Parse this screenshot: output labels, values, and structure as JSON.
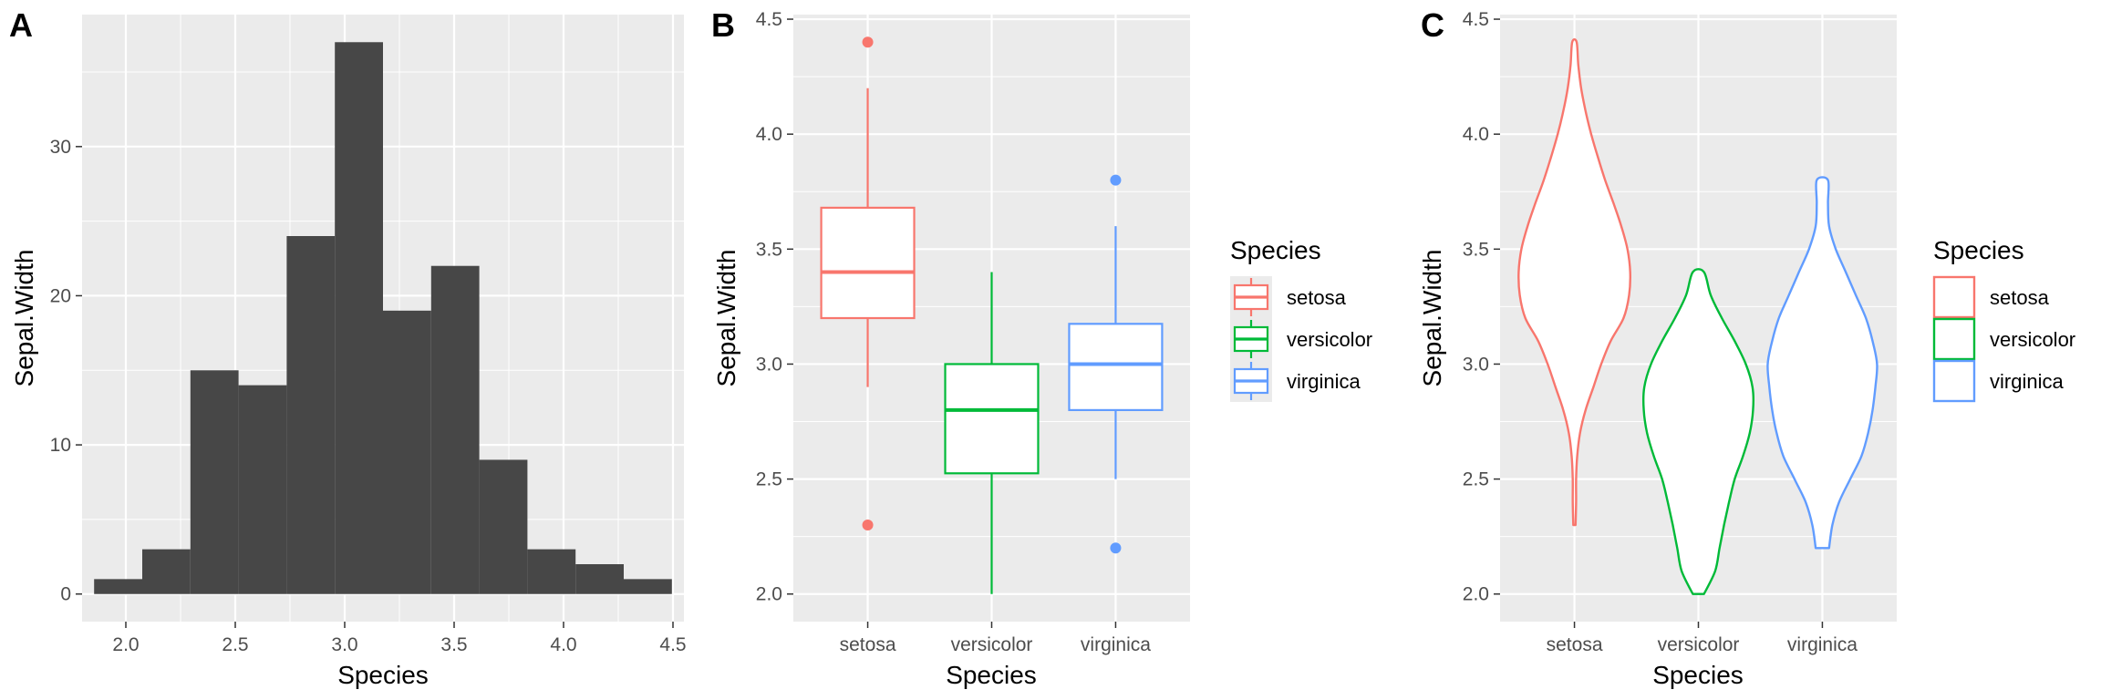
{
  "panels": [
    {
      "letter": "A",
      "chart_data": {
        "type": "bar",
        "subtype": "histogram",
        "title": "",
        "xlabel": "Species",
        "ylabel": "Sepal.Width",
        "xlim": [
          1.8,
          4.55
        ],
        "ylim": [
          -1.85,
          38.85
        ],
        "x_ticks": [
          "2.0",
          "2.5",
          "3.0",
          "3.5",
          "4.0",
          "4.5"
        ],
        "y_ticks": [
          "0",
          "10",
          "20",
          "30"
        ],
        "bin_edges": [
          1.855,
          2.075,
          2.295,
          2.515,
          2.735,
          2.955,
          3.175,
          3.395,
          3.615,
          3.835,
          4.055,
          4.275,
          4.495
        ],
        "values": [
          1,
          3,
          15,
          14,
          24,
          37,
          19,
          22,
          9,
          3,
          2,
          1
        ],
        "fill": "#474747",
        "grid": true
      }
    },
    {
      "letter": "B",
      "chart_data": {
        "type": "box",
        "title": "",
        "xlabel": "Species",
        "ylabel": "Sepal.Width",
        "categories": [
          "setosa",
          "versicolor",
          "virginica"
        ],
        "y_ticks": [
          "2.0",
          "2.5",
          "3.0",
          "3.5",
          "4.0",
          "4.5"
        ],
        "ylim": [
          1.88,
          4.52
        ],
        "series": [
          {
            "name": "setosa",
            "color": "#F8766D",
            "min": 2.9,
            "q1": 3.2,
            "median": 3.4,
            "q3": 3.68,
            "max": 4.2,
            "outliers": [
              2.3,
              4.4
            ]
          },
          {
            "name": "versicolor",
            "color": "#00BA38",
            "min": 2.0,
            "q1": 2.525,
            "median": 2.8,
            "q3": 3.0,
            "max": 3.4,
            "outliers": []
          },
          {
            "name": "virginica",
            "color": "#619CFF",
            "min": 2.5,
            "q1": 2.8,
            "median": 3.0,
            "q3": 3.175,
            "max": 3.6,
            "outliers": [
              2.2,
              3.8
            ]
          }
        ],
        "legend": {
          "title": "Species",
          "position": "right"
        },
        "grid": true
      }
    },
    {
      "letter": "C",
      "chart_data": {
        "type": "violin",
        "title": "",
        "xlabel": "Species",
        "ylabel": "Sepal.Width",
        "categories": [
          "setosa",
          "versicolor",
          "virginica"
        ],
        "y_ticks": [
          "2.0",
          "2.5",
          "3.0",
          "3.5",
          "4.0",
          "4.5"
        ],
        "ylim": [
          1.88,
          4.52
        ],
        "series": [
          {
            "name": "setosa",
            "color": "#F8766D",
            "y": [
              2.3,
              2.4,
              2.5,
              2.6,
              2.7,
              2.8,
              2.9,
              3.0,
              3.1,
              3.2,
              3.3,
              3.4,
              3.5,
              3.6,
              3.7,
              3.8,
              3.9,
              4.0,
              4.1,
              4.2,
              4.3,
              4.4
            ],
            "width": [
              0.02,
              0.03,
              0.03,
              0.05,
              0.1,
              0.2,
              0.34,
              0.48,
              0.65,
              0.88,
              0.98,
              1.0,
              0.95,
              0.84,
              0.7,
              0.55,
              0.42,
              0.3,
              0.2,
              0.12,
              0.07,
              0.04
            ]
          },
          {
            "name": "versicolor",
            "color": "#00BA38",
            "y": [
              2.0,
              2.1,
              2.2,
              2.3,
              2.4,
              2.5,
              2.6,
              2.7,
              2.8,
              2.9,
              3.0,
              3.1,
              3.2,
              3.3,
              3.4
            ],
            "width": [
              0.1,
              0.3,
              0.38,
              0.46,
              0.55,
              0.65,
              0.8,
              0.92,
              0.98,
              0.97,
              0.85,
              0.65,
              0.42,
              0.22,
              0.1
            ]
          },
          {
            "name": "virginica",
            "color": "#619CFF",
            "y": [
              2.2,
              2.3,
              2.4,
              2.5,
              2.6,
              2.7,
              2.8,
              2.9,
              3.0,
              3.1,
              3.2,
              3.3,
              3.4,
              3.5,
              3.6,
              3.7,
              3.8
            ],
            "width": [
              0.12,
              0.18,
              0.3,
              0.5,
              0.7,
              0.82,
              0.9,
              0.95,
              0.98,
              0.9,
              0.78,
              0.6,
              0.42,
              0.24,
              0.12,
              0.1,
              0.1
            ]
          }
        ],
        "legend": {
          "title": "Species",
          "position": "right"
        },
        "grid": true
      }
    }
  ]
}
